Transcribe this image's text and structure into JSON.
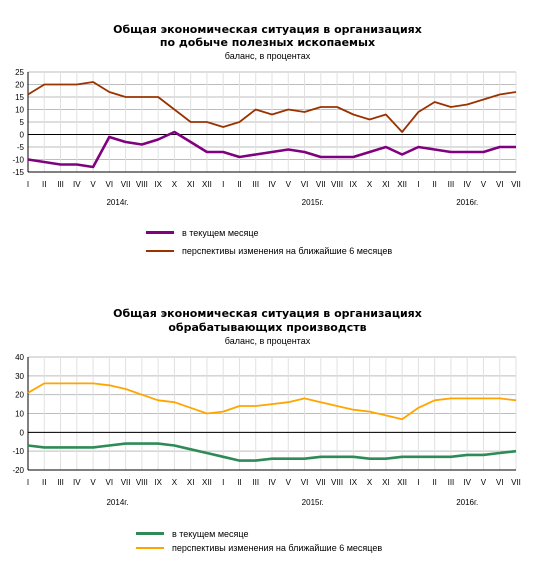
{
  "charts": [
    {
      "title_line1": "Общая экономическая ситуация в организациях",
      "title_line2": "по добыче полезных ископаемых",
      "subtitle": "баланс, в процентах",
      "legend": [
        "в текущем месяце",
        "перспективы изменения на ближайшие 6 месяцев"
      ]
    },
    {
      "title_line1": "Общая экономическая ситуация в организациях",
      "title_line2": "обрабатывающих производств",
      "subtitle": "баланс, в процентах",
      "legend": [
        "в текущем месяце",
        "перспективы изменения на ближайшие 6 месяцев"
      ]
    }
  ],
  "chart_data": [
    {
      "type": "line",
      "title": "Общая экономическая ситуация в организациях по добыче полезных ископаемых",
      "subtitle": "баланс, в процентах",
      "x": [
        "I",
        "II",
        "III",
        "IV",
        "V",
        "VI",
        "VII",
        "VIII",
        "IX",
        "X",
        "XI",
        "XII",
        "I",
        "II",
        "III",
        "IV",
        "V",
        "VI",
        "VII",
        "VIII",
        "IX",
        "X",
        "XI",
        "XII",
        "I",
        "II",
        "III",
        "IV",
        "V",
        "VI",
        "VII"
      ],
      "year_labels": [
        {
          "label": "2014г.",
          "index": 5.5
        },
        {
          "label": "2015г.",
          "index": 17.5
        },
        {
          "label": "2016г.",
          "index": 27
        }
      ],
      "ylim": [
        -15,
        25
      ],
      "yticks": [
        -15,
        -10,
        -5,
        0,
        5,
        10,
        15,
        20,
        25
      ],
      "grid": true,
      "legend_position": "bottom",
      "series": [
        {
          "name": "в текущем месяце",
          "color": "#800080",
          "values": [
            -10,
            -11,
            -12,
            -12,
            -13,
            -1,
            -3,
            -4,
            -2,
            1,
            -3,
            -7,
            -7,
            -9,
            -8,
            -7,
            -6,
            -7,
            -9,
            -9,
            -9,
            -7,
            -5,
            -8,
            -5,
            -6,
            -7,
            -7,
            -7,
            -5,
            -5
          ]
        },
        {
          "name": "перспективы изменения на ближайшие 6 месяцев",
          "color": "#993300",
          "values": [
            16,
            20,
            20,
            20,
            21,
            17,
            15,
            15,
            15,
            10,
            5,
            5,
            3,
            5,
            10,
            8,
            10,
            9,
            11,
            11,
            8,
            6,
            8,
            1,
            9,
            13,
            11,
            12,
            14,
            16,
            17
          ]
        }
      ]
    },
    {
      "type": "line",
      "title": "Общая экономическая ситуация в организациях обрабатывающих производств",
      "subtitle": "баланс, в процентах",
      "x": [
        "I",
        "II",
        "III",
        "IV",
        "V",
        "VI",
        "VII",
        "VIII",
        "IX",
        "X",
        "XI",
        "XII",
        "I",
        "II",
        "III",
        "IV",
        "V",
        "VI",
        "VII",
        "VIII",
        "IX",
        "X",
        "XI",
        "XII",
        "I",
        "II",
        "III",
        "IV",
        "V",
        "VI",
        "VII"
      ],
      "year_labels": [
        {
          "label": "2014г.",
          "index": 5.5
        },
        {
          "label": "2015г.",
          "index": 17.5
        },
        {
          "label": "2016г.",
          "index": 27
        }
      ],
      "ylim": [
        -20,
        40
      ],
      "yticks": [
        -20,
        -10,
        0,
        10,
        20,
        30,
        40
      ],
      "grid": true,
      "legend_position": "bottom",
      "series": [
        {
          "name": "в текущем месяце",
          "color": "#2e8b57",
          "values": [
            -7,
            -8,
            -8,
            -8,
            -8,
            -7,
            -6,
            -6,
            -6,
            -7,
            -9,
            -11,
            -13,
            -15,
            -15,
            -14,
            -14,
            -14,
            -13,
            -13,
            -13,
            -14,
            -14,
            -13,
            -13,
            -13,
            -13,
            -12,
            -12,
            -11,
            -10
          ]
        },
        {
          "name": "перспективы изменения на ближайшие 6 месяцев",
          "color": "#ffa500",
          "values": [
            21,
            26,
            26,
            26,
            26,
            25,
            23,
            20,
            17,
            16,
            13,
            10,
            11,
            14,
            14,
            15,
            16,
            18,
            16,
            14,
            12,
            11,
            9,
            7,
            13,
            17,
            18,
            18,
            18,
            18,
            17
          ]
        }
      ]
    }
  ]
}
